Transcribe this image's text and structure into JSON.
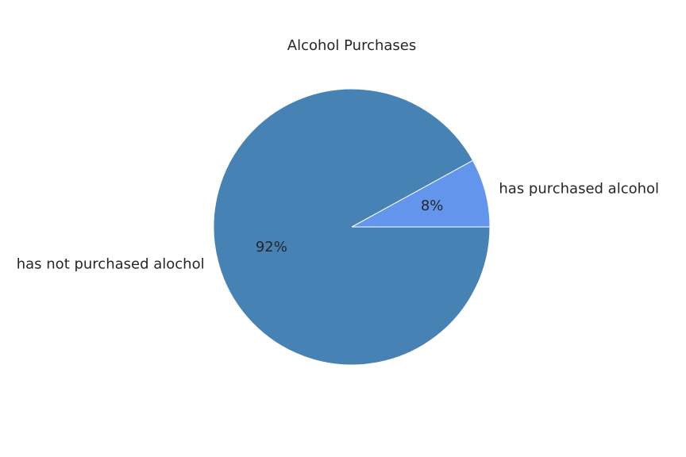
{
  "chart_data": {
    "type": "pie",
    "title": "Alcohol Purchases",
    "labels": [
      "has purchased alcohol",
      "has not purchased alochol"
    ],
    "values": [
      8,
      92
    ],
    "percent_labels": [
      "8%",
      "92%"
    ],
    "colors": [
      "#6495ED",
      "#4682B4"
    ],
    "edge_color": "#ffffff",
    "start_angle_deg": 0,
    "direction": "counterclockwise",
    "legend": "none"
  }
}
